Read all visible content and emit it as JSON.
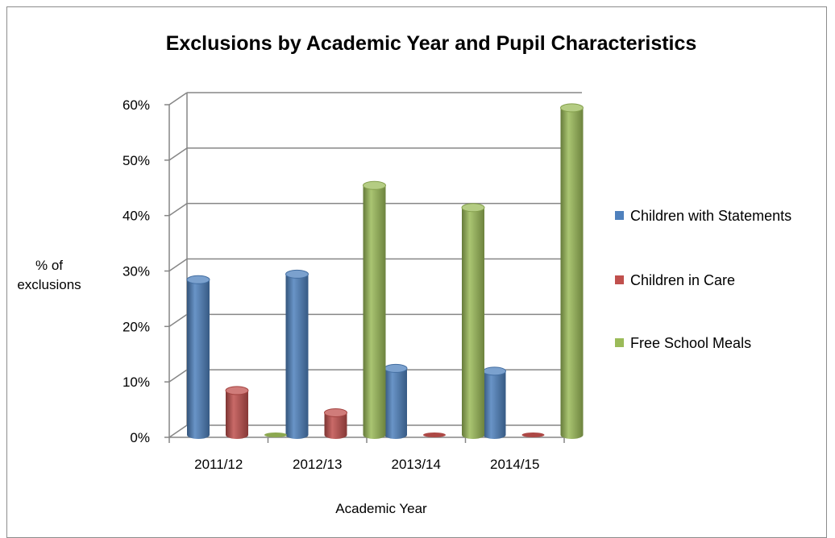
{
  "chart_data": {
    "type": "bar",
    "title": "Exclusions by Academic Year and Pupil Characteristics",
    "xlabel": "Academic Year",
    "ylabel": "% of exclusions",
    "categories": [
      "2011/12",
      "2012/13",
      "2013/14",
      "2014/15"
    ],
    "series": [
      {
        "name": "Children with Statements",
        "color": "#4f81bd",
        "values": [
          28,
          29,
          12,
          11.5
        ]
      },
      {
        "name": "Children in Care",
        "color": "#c0504d",
        "values": [
          8,
          4,
          0,
          0
        ]
      },
      {
        "name": "Free School Meals",
        "color": "#9bbb59",
        "values": [
          0,
          45,
          41,
          59
        ]
      }
    ],
    "yticks": [
      "0%",
      "10%",
      "20%",
      "30%",
      "40%",
      "50%",
      "60%"
    ],
    "ylim": [
      0,
      60
    ],
    "grid": true,
    "legend_position": "right",
    "style": "3d-cylinder"
  }
}
